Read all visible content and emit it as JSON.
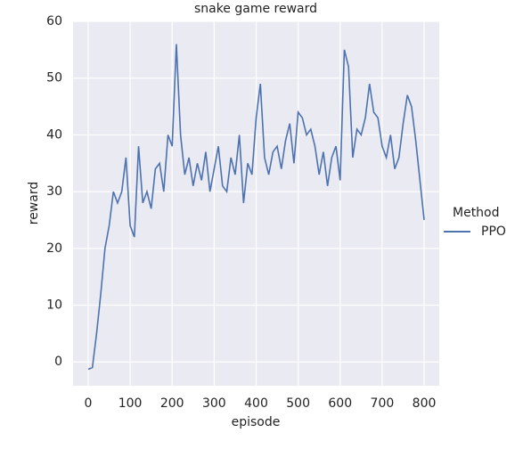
{
  "chart_data": {
    "type": "line",
    "title": "snake game reward",
    "xlabel": "episode",
    "ylabel": "reward",
    "legend_title": "Method",
    "legend": "right",
    "grid": true,
    "x": [
      0,
      10,
      20,
      30,
      40,
      50,
      60,
      70,
      80,
      90,
      100,
      110,
      120,
      130,
      140,
      150,
      160,
      170,
      180,
      190,
      200,
      210,
      220,
      230,
      240,
      250,
      260,
      270,
      280,
      290,
      300,
      310,
      320,
      330,
      340,
      350,
      360,
      370,
      380,
      390,
      400,
      410,
      420,
      430,
      440,
      450,
      460,
      470,
      480,
      490,
      500,
      510,
      520,
      530,
      540,
      550,
      560,
      570,
      580,
      590,
      600,
      610,
      620,
      630,
      640,
      650,
      660,
      670,
      680,
      690,
      700,
      710,
      720,
      730,
      740,
      750,
      760,
      770,
      780,
      790,
      800
    ],
    "series": [
      {
        "name": "PPO",
        "color": "#4c72b0",
        "values": [
          -1.3,
          -1,
          5,
          12,
          20,
          24,
          30,
          28,
          30,
          36,
          24,
          22,
          38,
          28,
          30,
          27,
          34,
          35,
          30,
          40,
          38,
          56,
          40,
          33,
          36,
          31,
          35,
          32,
          37,
          30,
          34,
          38,
          31,
          30,
          36,
          33,
          40,
          28,
          35,
          33,
          43,
          49,
          36,
          33,
          37,
          38,
          34,
          39,
          42,
          35,
          44,
          43,
          40,
          41,
          38,
          33,
          37,
          31,
          36,
          38,
          32,
          55,
          52,
          36,
          41,
          40,
          43,
          49,
          44,
          43,
          38,
          36,
          40,
          34,
          36,
          42,
          47,
          45,
          39,
          32,
          25
        ]
      }
    ],
    "xlim": [
      -36,
      836
    ],
    "ylim": [
      -4.2,
      60
    ],
    "xticks": [
      0,
      100,
      200,
      300,
      400,
      500,
      600,
      700,
      800
    ],
    "yticks": [
      0,
      10,
      20,
      30,
      40,
      50,
      60
    ]
  }
}
